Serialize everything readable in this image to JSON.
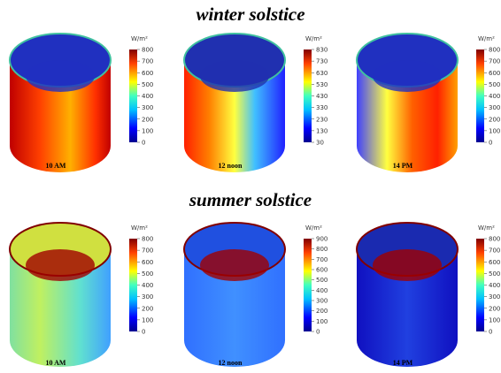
{
  "rows": [
    {
      "title": "winter solstice",
      "panels": [
        {
          "time": "10 AM",
          "unit": "W/m²",
          "ticks": [
            800,
            700,
            600,
            500,
            400,
            300,
            200,
            100,
            0
          ]
        },
        {
          "time": "12 noon",
          "unit": "W/m²",
          "ticks": [
            830,
            730,
            630,
            530,
            430,
            330,
            230,
            130,
            30
          ]
        },
        {
          "time": "14 PM",
          "unit": "W/m²",
          "ticks": [
            800,
            700,
            600,
            500,
            400,
            300,
            200,
            100,
            0
          ]
        }
      ]
    },
    {
      "title": "summer solstice",
      "panels": [
        {
          "time": "10 AM",
          "unit": "W/m²",
          "ticks": [
            800,
            700,
            600,
            500,
            400,
            300,
            200,
            100,
            0
          ]
        },
        {
          "time": "12 noon",
          "unit": "W/m²",
          "ticks": [
            900,
            800,
            700,
            600,
            500,
            400,
            300,
            200,
            100,
            0
          ]
        },
        {
          "time": "14 PM",
          "unit": "W/m²",
          "ticks": [
            800,
            700,
            600,
            500,
            400,
            300,
            200,
            100,
            0
          ]
        }
      ]
    }
  ]
}
